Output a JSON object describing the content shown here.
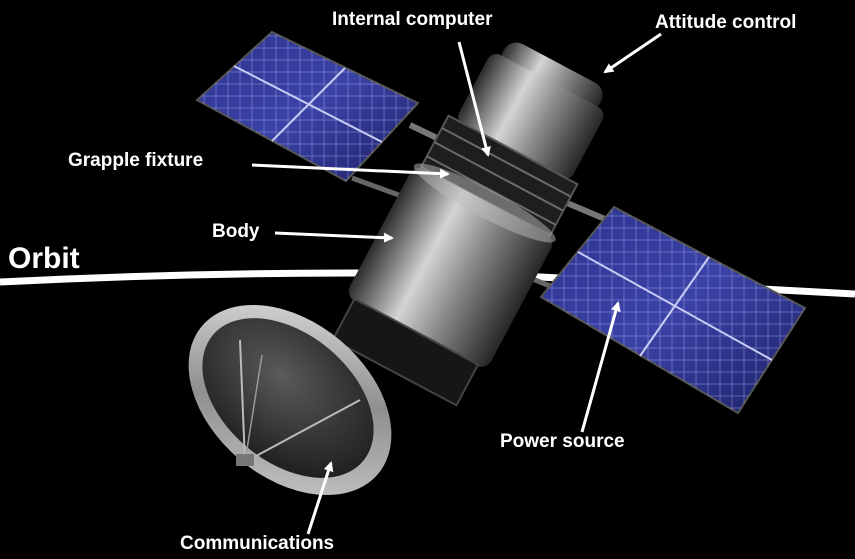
{
  "labels": {
    "internal_computer": "Internal computer",
    "attitude_control": "Attitude control",
    "grapple_fixture": "Grapple fixture",
    "body": "Body",
    "orbit": "Orbit",
    "power_source": "Power source",
    "communications": "Communications"
  },
  "colors": {
    "background": "#000000",
    "label_text": "#ffffff",
    "arrow": "#ffffff",
    "orbit_line": "#ffffff",
    "solar_panel": "#2a2f86",
    "solar_grid": "#9aa3e6",
    "body_metal": "#9a9a9a"
  }
}
